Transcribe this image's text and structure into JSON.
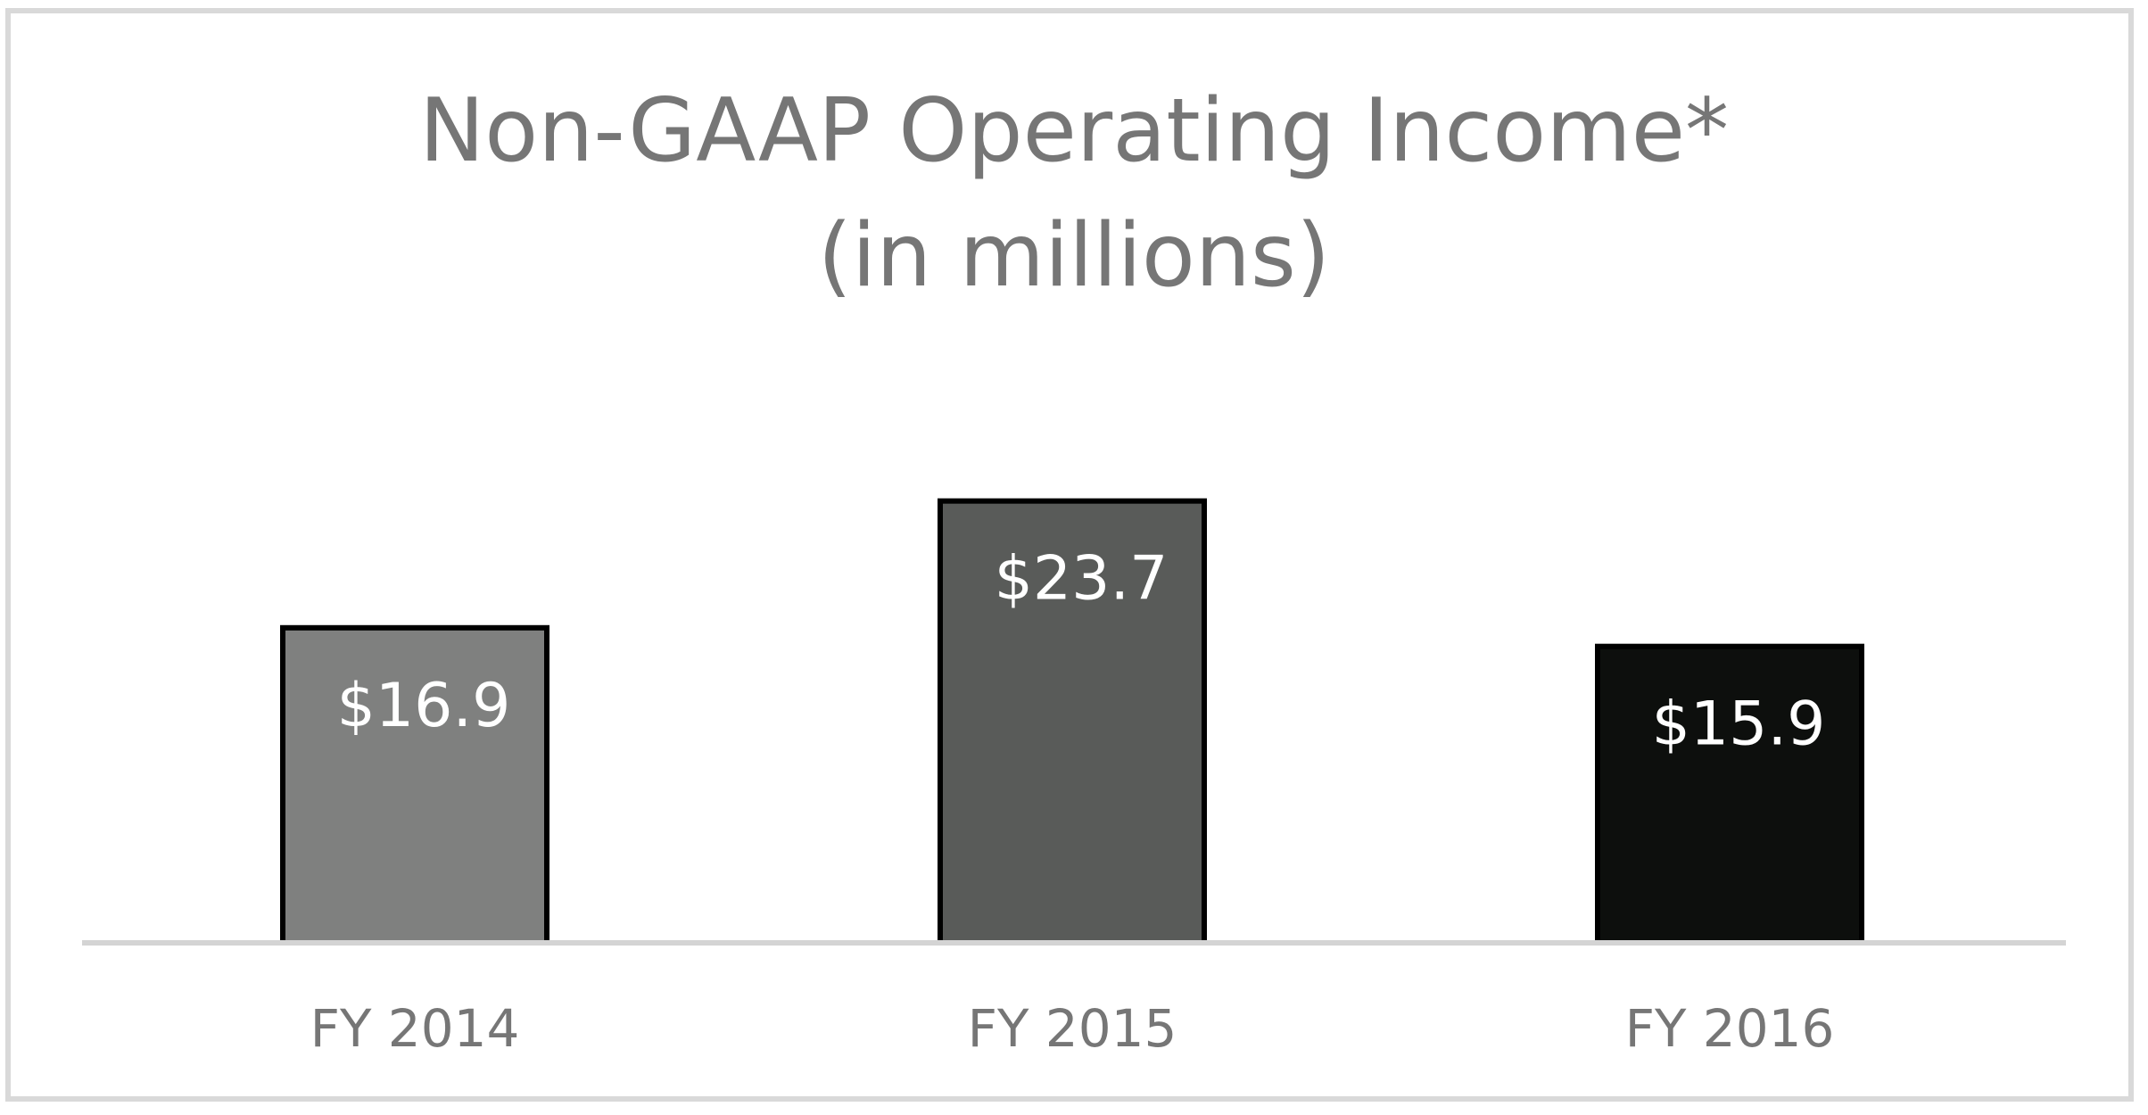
{
  "chart_data": {
    "type": "bar",
    "title": "Non-GAAP Operating Income*",
    "subtitle": "(in millions)",
    "categories": [
      "FY 2014",
      "FY 2015",
      "FY 2016"
    ],
    "values": [
      16.9,
      23.7,
      15.9
    ],
    "data_labels": [
      "$16.9",
      "$23.7",
      "$15.9"
    ],
    "ylim": [
      0,
      30
    ],
    "grid": false,
    "legend": "none",
    "colors": {
      "bars": [
        "#7f807f",
        "#595b59",
        "#0d0f0d"
      ],
      "bar_border": "#000000",
      "axis": "#d4d4d4",
      "tick_text": "#767676",
      "data_label_text": "#ffffff",
      "title_text": "#767676"
    }
  }
}
